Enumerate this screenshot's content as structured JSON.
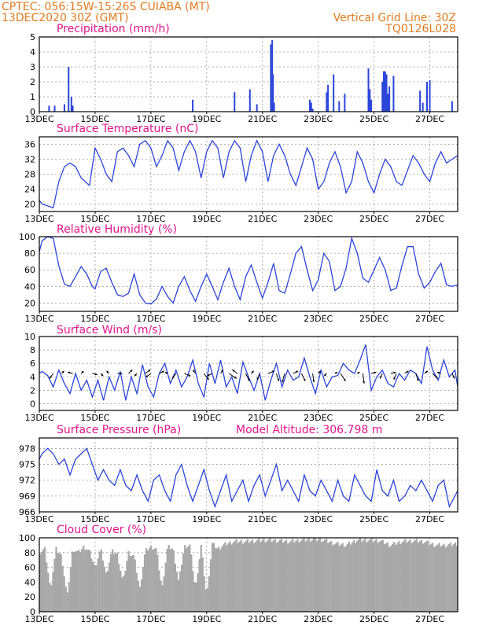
{
  "header": {
    "line1_left": "CPTEC:   056:15W-15:26S   CUIABA (MT)",
    "line2_left": "13DEC2020  30Z (GMT)",
    "line1_right": "Vertical Grid Line: 30Z",
    "line2_right": "TQ0126L028"
  },
  "colors": {
    "header": "#e07a1f",
    "title": "#e0168c",
    "series": "#2b45d9",
    "cloud": "#a8a8a8",
    "bars": "#2b45d9"
  },
  "x_ticks": [
    "13DEC",
    "15DEC",
    "17DEC",
    "19DEC",
    "21DEC",
    "23DEC",
    "25DEC",
    "27DEC"
  ],
  "x_tick_days": [
    13,
    15,
    17,
    19,
    21,
    23,
    25,
    27
  ],
  "x_range_days": [
    13,
    28
  ],
  "chart_data": [
    {
      "id": "precip",
      "type": "bar",
      "title": "Precipitation (mm/h)",
      "ylim": [
        0,
        5
      ],
      "yticks": [
        0,
        1,
        2,
        3,
        4,
        5
      ],
      "x_days": [
        13.35,
        13.55,
        13.9,
        14.05,
        14.15,
        14.2,
        18.5,
        20.0,
        20.55,
        20.8,
        21.3,
        21.35,
        21.38,
        21.42,
        22.7,
        22.75,
        22.8,
        23.3,
        23.35,
        23.55,
        23.75,
        23.95,
        24.8,
        24.85,
        24.9,
        25.3,
        25.35,
        25.4,
        25.45,
        25.5,
        25.55,
        25.7,
        26.65,
        26.75,
        26.9,
        27.0,
        27.8
      ],
      "values": [
        0.4,
        0.4,
        0.5,
        3.0,
        1.0,
        0.4,
        0.8,
        1.3,
        1.5,
        0.5,
        4.5,
        4.8,
        2.5,
        0.6,
        0.8,
        0.6,
        0.2,
        1.3,
        1.8,
        2.5,
        0.7,
        1.2,
        2.9,
        1.5,
        0.8,
        2.0,
        2.7,
        2.7,
        2.5,
        1.2,
        1.7,
        2.4,
        1.4,
        0.6,
        2.0,
        2.1,
        0.7
      ]
    },
    {
      "id": "temp",
      "type": "line",
      "title": "Surface Temperature (nC)",
      "ylim": [
        18,
        38
      ],
      "yticks": [
        20,
        24,
        28,
        32,
        36
      ],
      "x_days": [
        13.0,
        13.1,
        13.3,
        13.5,
        13.7,
        13.9,
        14.1,
        14.3,
        14.5,
        14.8,
        15.0,
        15.2,
        15.4,
        15.6,
        15.8,
        16.0,
        16.2,
        16.4,
        16.6,
        16.8,
        17.0,
        17.2,
        17.4,
        17.6,
        17.8,
        18.0,
        18.2,
        18.4,
        18.6,
        18.8,
        19.0,
        19.2,
        19.4,
        19.6,
        19.8,
        20.0,
        20.2,
        20.4,
        20.6,
        20.8,
        21.0,
        21.2,
        21.4,
        21.6,
        21.8,
        22.0,
        22.2,
        22.4,
        22.6,
        22.8,
        23.0,
        23.2,
        23.4,
        23.6,
        23.8,
        24.0,
        24.2,
        24.4,
        24.6,
        24.8,
        25.0,
        25.2,
        25.4,
        25.6,
        25.8,
        26.0,
        26.2,
        26.4,
        26.6,
        26.8,
        27.0,
        27.2,
        27.4,
        27.6,
        27.8,
        28.0
      ],
      "values": [
        21,
        20,
        19.5,
        19,
        26,
        30,
        31,
        30,
        27,
        25,
        35,
        32,
        28,
        26,
        34,
        35,
        33,
        30,
        36,
        37,
        35,
        30,
        33,
        37,
        35,
        29,
        34,
        37,
        34,
        27,
        34,
        37,
        35,
        27,
        34,
        37,
        35,
        26,
        33,
        37,
        34,
        26,
        33,
        36,
        33,
        28,
        25,
        30,
        35,
        32,
        24,
        26,
        31,
        34,
        30,
        23,
        26,
        34,
        31,
        26,
        23,
        28,
        32,
        30,
        26,
        25,
        29,
        33,
        31,
        28,
        26,
        31,
        34,
        31,
        32,
        33
      ]
    },
    {
      "id": "rh",
      "type": "line",
      "title": "Relative Humidity (%)",
      "ylim": [
        10,
        100
      ],
      "yticks": [
        20,
        40,
        60,
        80,
        100
      ],
      "x_days": [
        13.0,
        13.1,
        13.3,
        13.5,
        13.7,
        13.9,
        14.1,
        14.3,
        14.5,
        14.7,
        14.9,
        15.0,
        15.2,
        15.4,
        15.6,
        15.8,
        16.0,
        16.2,
        16.4,
        16.6,
        16.8,
        17.0,
        17.2,
        17.4,
        17.6,
        17.8,
        18.0,
        18.2,
        18.4,
        18.6,
        18.8,
        19.0,
        19.2,
        19.4,
        19.6,
        19.8,
        20.0,
        20.2,
        20.4,
        20.6,
        20.8,
        21.0,
        21.2,
        21.4,
        21.6,
        21.8,
        22.0,
        22.2,
        22.4,
        22.6,
        22.8,
        23.0,
        23.2,
        23.4,
        23.6,
        23.8,
        24.0,
        24.2,
        24.4,
        24.6,
        24.8,
        25.0,
        25.2,
        25.4,
        25.6,
        25.8,
        26.0,
        26.2,
        26.4,
        26.6,
        26.8,
        27.0,
        27.2,
        27.4,
        27.6,
        27.8,
        28.0
      ],
      "values": [
        82,
        95,
        100,
        98,
        65,
        43,
        40,
        52,
        64,
        55,
        40,
        37,
        58,
        62,
        45,
        30,
        28,
        32,
        55,
        30,
        20,
        19,
        25,
        40,
        28,
        20,
        40,
        52,
        35,
        22,
        40,
        55,
        40,
        24,
        45,
        62,
        40,
        24,
        52,
        66,
        45,
        26,
        45,
        68,
        35,
        32,
        55,
        80,
        88,
        60,
        35,
        48,
        80,
        70,
        35,
        40,
        62,
        98,
        80,
        50,
        45,
        60,
        75,
        60,
        35,
        38,
        65,
        88,
        88,
        55,
        38,
        45,
        58,
        68,
        42,
        40,
        42
      ]
    },
    {
      "id": "wind",
      "type": "line",
      "title": "Surface Wind (m/s)",
      "ylim": [
        -1,
        10
      ],
      "yticks": [
        0,
        2,
        4,
        6,
        8,
        10
      ],
      "x_days": [
        13.0,
        13.1,
        13.3,
        13.5,
        13.7,
        13.9,
        14.1,
        14.3,
        14.5,
        14.7,
        14.9,
        15.1,
        15.3,
        15.5,
        15.7,
        15.9,
        16.1,
        16.3,
        16.5,
        16.7,
        16.9,
        17.1,
        17.3,
        17.5,
        17.7,
        17.9,
        18.1,
        18.3,
        18.5,
        18.7,
        18.9,
        19.1,
        19.3,
        19.5,
        19.7,
        19.9,
        20.1,
        20.3,
        20.5,
        20.7,
        20.9,
        21.1,
        21.3,
        21.5,
        21.7,
        21.9,
        22.1,
        22.3,
        22.5,
        22.7,
        22.9,
        23.1,
        23.3,
        23.5,
        23.7,
        23.9,
        24.1,
        24.3,
        24.5,
        24.7,
        24.9,
        25.1,
        25.3,
        25.5,
        25.7,
        25.9,
        26.1,
        26.3,
        26.5,
        26.7,
        26.9,
        27.1,
        27.3,
        27.5,
        27.7,
        27.9,
        28.0
      ],
      "values": [
        4.5,
        4.8,
        4.2,
        2.5,
        5.0,
        3.0,
        1.5,
        4.5,
        2.0,
        3.5,
        1.0,
        3.5,
        0.5,
        4.0,
        2.0,
        4.8,
        0.5,
        4.0,
        1.5,
        5.8,
        2.5,
        1.0,
        4.5,
        6.0,
        3.0,
        5.0,
        2.5,
        4.0,
        6.5,
        3.0,
        1.0,
        6.0,
        3.0,
        6.5,
        2.5,
        4.0,
        1.5,
        6.2,
        4.0,
        2.0,
        4.5,
        0.5,
        3.5,
        6.0,
        2.5,
        5.0,
        3.5,
        4.0,
        6.8,
        4.0,
        1.5,
        5.0,
        2.5,
        4.0,
        4.2,
        6.0,
        5.0,
        4.5,
        6.5,
        8.8,
        2.0,
        4.0,
        5.0,
        3.0,
        2.5,
        4.5,
        3.5,
        5.0,
        4.5,
        3.0,
        8.5,
        5.0,
        3.5,
        6.5,
        4.0,
        5.0,
        2.5
      ],
      "vector_x_days": [
        13.5,
        13.8,
        14.2,
        14.5,
        14.9,
        15.2,
        15.5,
        15.8,
        16.2,
        16.5,
        16.8,
        17.0,
        17.3,
        17.6,
        17.9,
        18.2,
        18.6,
        18.9,
        19.2,
        19.5,
        19.8,
        20.1,
        20.4,
        20.6,
        20.9,
        21.2,
        21.5,
        21.8,
        22.1,
        22.4,
        22.8,
        23.0,
        23.3,
        23.6,
        23.8,
        24.4,
        24.6,
        24.9,
        25.3,
        25.6,
        25.8,
        26.1,
        26.5,
        26.8,
        27.1,
        27.4,
        27.8
      ],
      "vector_u": [
        -1.5,
        1.0,
        -2.0,
        1.0,
        2.0,
        1.0,
        -1.0,
        2.0,
        1.5,
        -1.0,
        2.0,
        -2.0,
        2.0,
        -1.0,
        -1.5,
        2.5,
        -1.0,
        2.0,
        -2.0,
        1.0,
        3.0,
        -2.0,
        1.5,
        1.0,
        -1.0,
        2.5,
        1.0,
        -1.0,
        2.0,
        1.5,
        0.5,
        1.0,
        -1.0,
        1.0,
        2.0,
        1.0,
        0.5,
        2.0,
        -1.0,
        2.0,
        -1.0,
        1.5,
        1.0,
        1.5,
        2.0,
        -1.5,
        1.0
      ],
      "vector_v": [
        -2.0,
        1.0,
        0.5,
        1.0,
        -0.5,
        -1.0,
        1.0,
        0.0,
        1.5,
        -1.0,
        1.5,
        -1.5,
        1.0,
        0.5,
        -2.0,
        -1.0,
        1.5,
        -2.5,
        -1.0,
        1.5,
        -2.0,
        1.5,
        -3.0,
        1.0,
        -2.5,
        1.0,
        -3.0,
        -3.5,
        1.0,
        -3.0,
        -3.5,
        1.0,
        -1.0,
        0.5,
        -3.0,
        0.5,
        -4.0,
        0.5,
        -2.0,
        0.5,
        -2.5,
        1.0,
        -3.0,
        1.0,
        -2.0,
        0.5,
        -2.0
      ]
    },
    {
      "id": "pres",
      "type": "line",
      "title": "Surface Pressure (hPa)",
      "annotation": "Model Altitude: 306.798 m",
      "ylim": [
        966,
        980
      ],
      "yticks": [
        966,
        969,
        972,
        975,
        978
      ],
      "x_days": [
        13.0,
        13.1,
        13.3,
        13.5,
        13.7,
        13.9,
        14.1,
        14.3,
        14.5,
        14.7,
        14.9,
        15.1,
        15.3,
        15.5,
        15.7,
        15.9,
        16.1,
        16.3,
        16.5,
        16.7,
        16.9,
        17.1,
        17.3,
        17.5,
        17.7,
        17.9,
        18.1,
        18.3,
        18.5,
        18.7,
        18.9,
        19.1,
        19.3,
        19.5,
        19.7,
        19.9,
        20.1,
        20.3,
        20.5,
        20.7,
        20.9,
        21.1,
        21.3,
        21.5,
        21.7,
        21.9,
        22.1,
        22.3,
        22.5,
        22.7,
        22.9,
        23.1,
        23.3,
        23.5,
        23.7,
        23.9,
        24.1,
        24.3,
        24.5,
        24.7,
        24.9,
        25.1,
        25.3,
        25.5,
        25.7,
        25.9,
        26.1,
        26.3,
        26.5,
        26.7,
        26.9,
        27.1,
        27.3,
        27.5,
        27.7,
        27.9,
        28.0
      ],
      "values": [
        976,
        977,
        978,
        977,
        975,
        976,
        973,
        976,
        977,
        978,
        975,
        972,
        974,
        972,
        971,
        974,
        971,
        970,
        973,
        970,
        968,
        972,
        973,
        970,
        968,
        973,
        975,
        971,
        968,
        971,
        974,
        970,
        967,
        970,
        973,
        968,
        970,
        972,
        968,
        971,
        973,
        969,
        972,
        975,
        970,
        972,
        970,
        968,
        973,
        970,
        969,
        972,
        970,
        968,
        972,
        969,
        968,
        973,
        971,
        969,
        968,
        974,
        970,
        969,
        972,
        968,
        969,
        971,
        970,
        972,
        970,
        968,
        971,
        972,
        967,
        969,
        970
      ]
    },
    {
      "id": "cloud",
      "type": "area",
      "title": "Cloud Cover (%)",
      "ylim": [
        0,
        100
      ],
      "yticks": [
        0,
        20,
        40,
        60,
        80,
        100
      ],
      "x_days": [
        13.0,
        13.2,
        13.4,
        13.6,
        13.8,
        14.0,
        14.2,
        14.4,
        14.6,
        14.8,
        15.0,
        15.2,
        15.4,
        15.6,
        15.8,
        16.0,
        16.2,
        16.4,
        16.6,
        16.8,
        17.0,
        17.2,
        17.4,
        17.6,
        17.8,
        18.0,
        18.2,
        18.4,
        18.6,
        18.8,
        19.0,
        19.2,
        19.4,
        19.6,
        19.8,
        20.0,
        20.4,
        20.8,
        21.2,
        21.6,
        22.0,
        22.4,
        22.8,
        23.2,
        23.6,
        24.0,
        24.4,
        24.8,
        25.2,
        25.6,
        26.0,
        26.4,
        26.8,
        27.2,
        27.6,
        28.0
      ],
      "values": [
        80,
        85,
        30,
        85,
        75,
        20,
        85,
        80,
        88,
        82,
        60,
        85,
        50,
        82,
        78,
        40,
        80,
        75,
        30,
        82,
        88,
        85,
        30,
        88,
        85,
        40,
        88,
        90,
        30,
        90,
        20,
        92,
        85,
        90,
        93,
        95,
        95,
        96,
        97,
        96,
        95,
        97,
        98,
        97,
        92,
        90,
        97,
        97,
        96,
        90,
        95,
        96,
        95,
        90,
        90,
        92
      ]
    }
  ]
}
